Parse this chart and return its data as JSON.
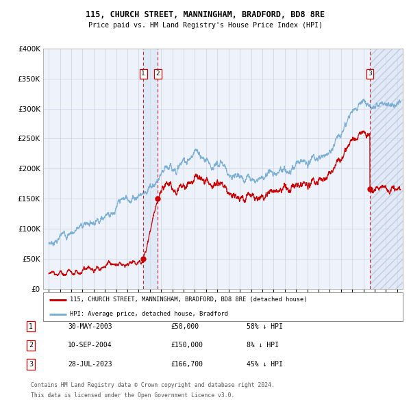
{
  "title1": "115, CHURCH STREET, MANNINGHAM, BRADFORD, BD8 8RE",
  "title2": "Price paid vs. HM Land Registry's House Price Index (HPI)",
  "legend_property": "115, CHURCH STREET, MANNINGHAM, BRADFORD, BD8 8RE (detached house)",
  "legend_hpi": "HPI: Average price, detached house, Bradford",
  "footer1": "Contains HM Land Registry data © Crown copyright and database right 2024.",
  "footer2": "This data is licensed under the Open Government Licence v3.0.",
  "transactions": [
    {
      "num": "1",
      "date": "30-MAY-2003",
      "price": "£50,000",
      "pct": "58% ↓ HPI",
      "x_year": 2003.41,
      "y_val": 50000
    },
    {
      "num": "2",
      "date": "10-SEP-2004",
      "price": "£150,000",
      "pct": "8% ↓ HPI",
      "x_year": 2004.69,
      "y_val": 150000
    },
    {
      "num": "3",
      "date": "28-JUL-2023",
      "price": "£166,700",
      "pct": "45% ↓ HPI",
      "x_year": 2023.57,
      "y_val": 166700
    }
  ],
  "property_color": "#cc0000",
  "hpi_color": "#7bafd4",
  "background_color": "#eef2fb",
  "grid_color": "#c8d0e0",
  "shade_color": "#d8e4f4",
  "hatch_color": "#c0cce0",
  "ylim": [
    0,
    400000
  ],
  "xlim_start": 1994.5,
  "xlim_end": 2026.5,
  "yticks": [
    0,
    50000,
    100000,
    150000,
    200000,
    250000,
    300000,
    350000,
    400000
  ],
  "xticks": [
    1995,
    1996,
    1997,
    1998,
    1999,
    2000,
    2001,
    2002,
    2003,
    2004,
    2005,
    2006,
    2007,
    2008,
    2009,
    2010,
    2011,
    2012,
    2013,
    2014,
    2015,
    2016,
    2017,
    2018,
    2019,
    2020,
    2021,
    2022,
    2023,
    2024,
    2025,
    2026
  ]
}
